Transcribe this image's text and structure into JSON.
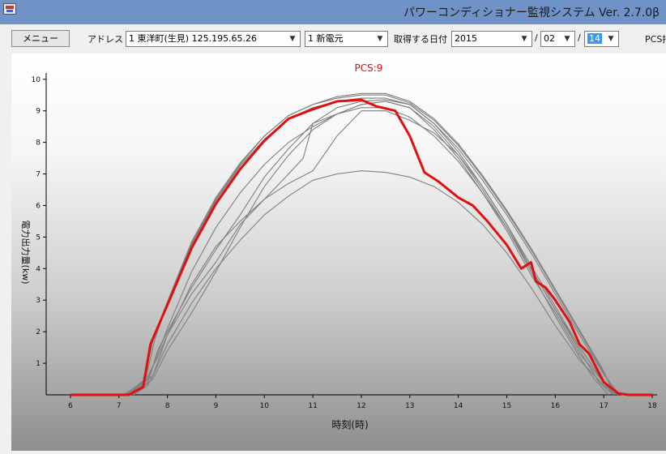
{
  "window": {
    "title": "パワーコンディショナー監視システム Ver. 2.7.0β"
  },
  "toolbar": {
    "menu_label": "メニュー",
    "address_label": "アドレス",
    "address_value": "1 東洋町(生見) 125.195.65.26",
    "site_value": "1 新電元",
    "date_label": "取得する日付",
    "year_value": "2015",
    "sep1": "/",
    "month_value": "02",
    "sep2": "/",
    "day_value": "14",
    "pcs_label": "PCS指"
  },
  "chart_data": {
    "type": "line",
    "title": "PCS:9",
    "xlabel": "時刻(時)",
    "ylabel": "電力出力量(kw)",
    "xlim": [
      5.5,
      18.1
    ],
    "ylim": [
      0,
      10.2
    ],
    "xticks": [
      6,
      7,
      8,
      9,
      10,
      11,
      12,
      13,
      14,
      15,
      16,
      17,
      18
    ],
    "yticks": [
      1,
      2,
      3,
      4,
      5,
      6,
      7,
      8,
      9,
      10
    ],
    "colors": {
      "highlight": "#e01010",
      "others": "#7f7f7f"
    },
    "highlight_series": {
      "name": "PCS:9",
      "x": [
        6.0,
        7.0,
        7.2,
        7.5,
        7.65,
        8.0,
        8.5,
        9.0,
        9.5,
        10.0,
        10.5,
        11.0,
        11.5,
        12.0,
        12.3,
        12.7,
        13.0,
        13.3,
        13.6,
        14.0,
        14.3,
        14.6,
        15.0,
        15.3,
        15.5,
        15.6,
        15.8,
        16.0,
        16.3,
        16.5,
        16.7,
        17.0,
        17.3,
        17.5,
        18.0
      ],
      "y": [
        0,
        0,
        0,
        0.25,
        1.6,
        2.85,
        4.65,
        6.05,
        7.15,
        8.05,
        8.75,
        9.05,
        9.3,
        9.35,
        9.15,
        9.0,
        8.2,
        7.05,
        6.75,
        6.25,
        6.0,
        5.5,
        4.75,
        4.0,
        4.2,
        3.6,
        3.4,
        3.0,
        2.3,
        1.6,
        1.3,
        0.4,
        0.05,
        0,
        0
      ]
    },
    "other_series": [
      {
        "x": [
          7.1,
          7.5,
          7.7,
          8.0,
          8.5,
          9.0,
          9.5,
          10.0,
          10.5,
          11.0,
          11.5,
          12.0,
          12.5,
          13.0,
          13.5,
          14.0,
          14.5,
          15.0,
          15.5,
          16.0,
          16.5,
          17.0,
          17.2
        ],
        "y": [
          0,
          0.4,
          1.7,
          2.9,
          4.8,
          6.2,
          7.3,
          8.2,
          8.85,
          9.2,
          9.45,
          9.55,
          9.55,
          9.3,
          8.75,
          7.95,
          6.95,
          5.85,
          4.65,
          3.35,
          2.05,
          0.75,
          0.05
        ]
      },
      {
        "x": [
          7.15,
          7.5,
          7.7,
          8.0,
          8.5,
          9.0,
          9.5,
          10.0,
          10.5,
          11.0,
          11.5,
          12.0,
          12.5,
          13.0,
          13.5,
          14.0,
          14.5,
          15.0,
          15.5,
          16.0,
          16.5,
          17.0,
          17.25
        ],
        "y": [
          0,
          0.45,
          1.75,
          2.95,
          4.85,
          6.25,
          7.35,
          8.2,
          8.85,
          9.2,
          9.4,
          9.5,
          9.5,
          9.25,
          8.7,
          7.9,
          6.9,
          5.8,
          4.6,
          3.3,
          2.0,
          0.7,
          0.05
        ]
      },
      {
        "x": [
          7.2,
          7.55,
          7.75,
          8.0,
          8.5,
          9.0,
          9.5,
          10.0,
          10.5,
          11.0,
          11.5,
          12.0,
          12.5,
          13.0,
          13.5,
          14.0,
          14.5,
          15.0,
          15.5,
          16.0,
          16.5,
          17.0,
          17.3
        ],
        "y": [
          0,
          0.5,
          1.8,
          2.9,
          4.75,
          6.15,
          7.25,
          8.1,
          8.75,
          9.1,
          9.3,
          9.4,
          9.4,
          9.2,
          8.6,
          7.8,
          6.8,
          5.7,
          4.5,
          3.2,
          1.9,
          0.65,
          0.05
        ]
      },
      {
        "x": [
          7.25,
          7.6,
          7.8,
          8.0,
          8.5,
          9.0,
          9.5,
          10.0,
          10.5,
          11.0,
          11.5,
          12.0,
          12.5,
          13.0,
          13.5,
          14.0,
          14.5,
          15.0,
          15.5,
          16.0,
          16.5,
          17.0,
          17.3
        ],
        "y": [
          0,
          0.4,
          1.4,
          2.0,
          3.4,
          4.6,
          5.7,
          6.9,
          7.8,
          8.6,
          9.1,
          9.3,
          9.35,
          9.2,
          8.6,
          7.7,
          6.6,
          5.4,
          4.1,
          2.8,
          1.5,
          0.4,
          0.05
        ]
      },
      {
        "x": [
          7.2,
          7.5,
          7.8,
          8.0,
          8.5,
          9.0,
          9.5,
          10.0,
          10.5,
          10.8,
          11.0,
          11.5,
          12.0,
          12.5,
          13.0,
          13.5,
          14.0,
          14.5,
          15.0,
          15.5,
          16.0,
          16.5,
          17.0,
          17.2
        ],
        "y": [
          0,
          0.3,
          1.2,
          1.9,
          3.2,
          4.2,
          5.4,
          6.2,
          7.0,
          7.5,
          8.6,
          8.9,
          9.2,
          9.3,
          9.1,
          8.4,
          7.5,
          6.4,
          5.2,
          3.8,
          2.6,
          1.3,
          0.4,
          0
        ]
      },
      {
        "x": [
          7.3,
          7.6,
          8.0,
          8.5,
          9.0,
          9.5,
          10.0,
          10.5,
          11.0,
          11.5,
          12.0,
          12.5,
          13.0,
          13.5,
          14.0,
          14.5,
          15.0,
          15.5,
          16.0,
          16.5,
          17.0,
          17.3
        ],
        "y": [
          0,
          0.3,
          1.6,
          2.9,
          4.0,
          4.9,
          5.7,
          6.3,
          6.8,
          7.0,
          7.1,
          7.05,
          6.9,
          6.6,
          6.1,
          5.4,
          4.5,
          3.4,
          2.2,
          1.1,
          0.3,
          0
        ]
      },
      {
        "x": [
          7.2,
          7.7,
          8.0,
          8.5,
          9.0,
          9.5,
          10.0,
          10.5,
          11.0,
          11.5,
          12.0,
          12.5,
          13.0,
          13.5,
          14.0,
          14.5,
          15.0,
          15.5,
          16.0,
          16.5,
          16.9,
          17.2
        ],
        "y": [
          0,
          0.6,
          1.9,
          3.5,
          4.7,
          5.5,
          6.2,
          6.7,
          7.1,
          8.2,
          9.0,
          9.0,
          8.7,
          8.3,
          7.6,
          6.6,
          5.4,
          4.0,
          2.7,
          1.4,
          0.4,
          0
        ]
      },
      {
        "x": [
          7.2,
          7.6,
          8.0,
          8.5,
          9.0,
          9.5,
          10.0,
          10.5,
          11.0,
          11.5,
          12.0,
          12.5,
          13.0,
          13.5,
          14.0,
          14.5,
          15.0,
          15.5,
          16.0,
          16.5,
          17.0,
          17.25
        ],
        "y": [
          0,
          0.5,
          2.1,
          3.9,
          5.3,
          6.4,
          7.3,
          8.0,
          8.5,
          8.9,
          9.1,
          9.1,
          8.8,
          8.2,
          7.4,
          6.4,
          5.3,
          4.0,
          2.7,
          1.5,
          0.4,
          0
        ]
      },
      {
        "x": [
          7.3,
          7.7,
          8.0,
          8.5,
          9.0,
          9.5,
          10.0,
          10.5,
          11.0,
          11.5,
          12.0,
          12.5,
          13.0,
          13.5,
          14.0,
          14.5,
          15.0,
          15.5,
          16.0,
          16.5,
          16.8,
          17.1
        ],
        "y": [
          0,
          0.5,
          1.4,
          2.6,
          3.9,
          5.3,
          6.6,
          7.6,
          8.4,
          8.9,
          9.2,
          9.3,
          9.1,
          8.5,
          7.6,
          6.5,
          5.3,
          3.9,
          2.5,
          1.2,
          0.5,
          0
        ]
      }
    ]
  }
}
